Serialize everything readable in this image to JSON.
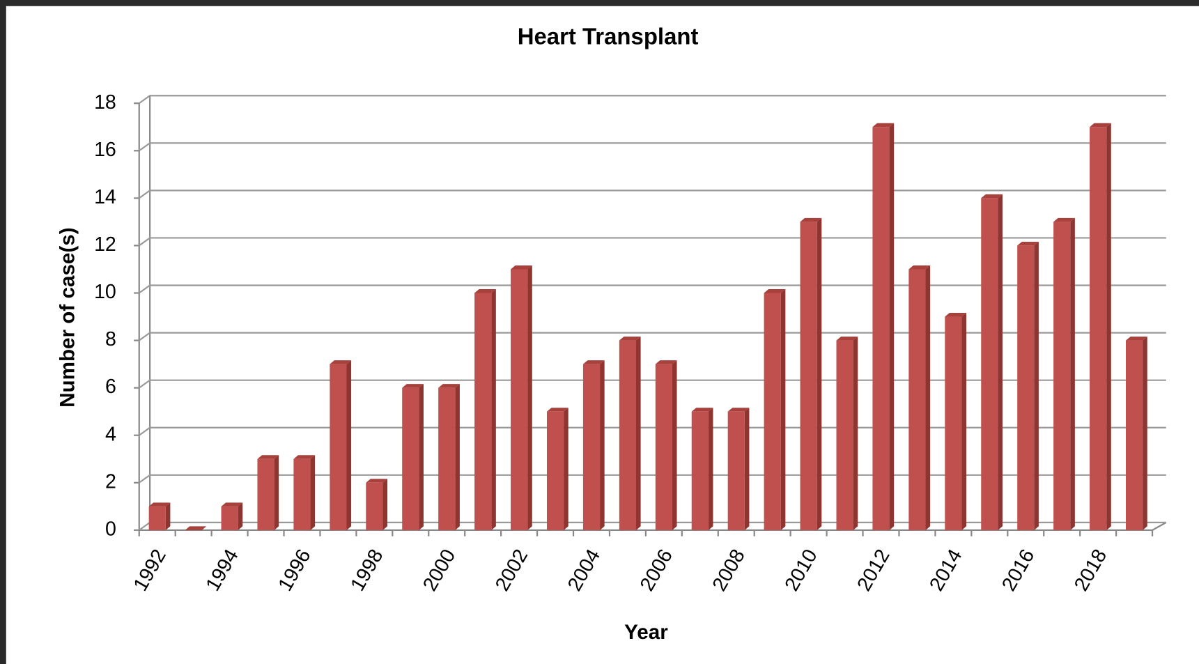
{
  "chart_data": {
    "type": "bar",
    "title": "Heart Transplant",
    "xlabel": "Year",
    "ylabel": "Number of case(s)",
    "categories": [
      "1992",
      null,
      "1994",
      null,
      "1996",
      null,
      "1998",
      null,
      "2000",
      null,
      "2002",
      null,
      "2004",
      null,
      "2006",
      null,
      "2008",
      null,
      "2010",
      null,
      "2012",
      null,
      "2014",
      null,
      "2016",
      null,
      "2018",
      null
    ],
    "values": [
      1,
      0,
      1,
      3,
      3,
      7,
      2,
      6,
      6,
      10,
      11,
      5,
      7,
      8,
      7,
      5,
      5,
      10,
      13,
      8,
      17,
      11,
      9,
      14,
      12,
      13,
      17,
      8
    ],
    "color": "#c0504d",
    "ylim": [
      0,
      18
    ],
    "yticks": [
      0,
      2,
      4,
      6,
      8,
      10,
      12,
      14,
      16,
      18
    ],
    "grid": true
  }
}
